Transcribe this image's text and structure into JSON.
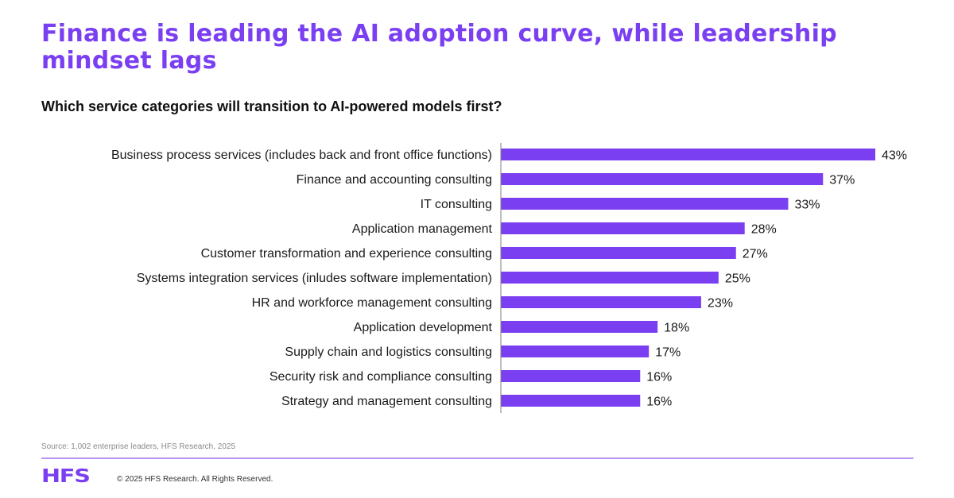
{
  "header": {
    "title": "Finance is leading the AI adoption curve, while leadership mindset lags",
    "subtitle": "Which service categories will transition to AI-powered models first?"
  },
  "colors": {
    "accent": "#7b3ff2",
    "bar": "#7b3ff2",
    "divider": "#b894f0",
    "axis": "#7f7f7f"
  },
  "chart_data": {
    "type": "bar",
    "orientation": "horizontal",
    "title": "Which service categories will transition to AI-powered models first?",
    "xlabel": "",
    "ylabel": "",
    "unit": "%",
    "xlim": [
      0,
      43
    ],
    "grid": false,
    "legend": "none",
    "categories": [
      "Business process services (includes back and front office functions)",
      "Finance and accounting consulting",
      "IT consulting",
      "Application management",
      "Customer transformation and experience consulting",
      "Systems integration services (inludes software implementation)",
      "HR and workforce management consulting",
      "Application development",
      "Supply chain and logistics consulting",
      "Security risk and compliance consulting",
      "Strategy and management consulting"
    ],
    "values": [
      43,
      37,
      33,
      28,
      27,
      25,
      23,
      18,
      17,
      16,
      16
    ],
    "value_labels": [
      "43%",
      "37%",
      "33%",
      "28%",
      "27%",
      "25%",
      "23%",
      "18%",
      "17%",
      "16%",
      "16%"
    ]
  },
  "footer": {
    "source": "Source: 1,002 enterprise leaders, HFS Research, 2025",
    "logo": "HFS",
    "copyright": "© 2025 HFS Research. All Rights Reserved."
  }
}
